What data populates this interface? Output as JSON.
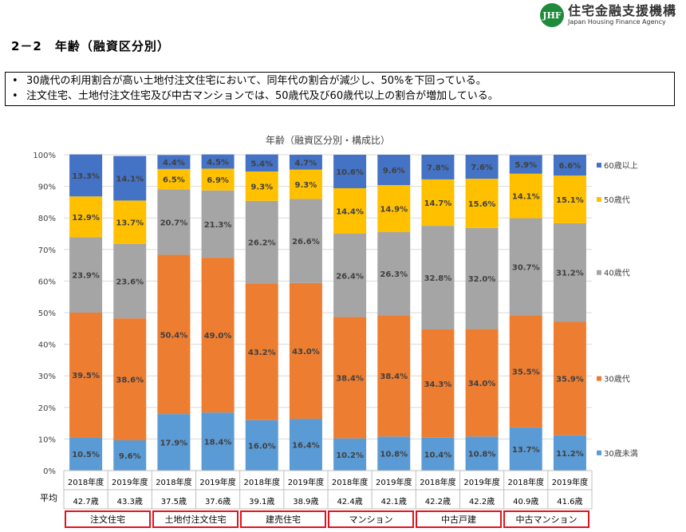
{
  "logo": {
    "mark": "JHF",
    "name": "住宅金融支援機構",
    "sub": "Japan Housing Finance Agency"
  },
  "section_title": "2－2　年齢（融資区分別）",
  "bullets": [
    "30歳代の利用割合が高い土地付注文住宅において、同年代の割合が減少し、50%を下回っている。",
    "注文住宅、土地付注文住宅及び中古マンションでは、50歳代及び60歳代以上の割合が増加している。"
  ],
  "bullet_mark": "•",
  "avg_label": "平均",
  "categories": [
    "注文住宅",
    "土地付注文住宅",
    "建売住宅",
    "マンション",
    "中古戸建",
    "中古マンション"
  ],
  "colors": {
    "u30": "#5b9bd5",
    "s30": "#ed7d31",
    "s40": "#a5a5a5",
    "s50": "#ffc000",
    "o60": "#4472c4"
  },
  "chart_data": {
    "type": "bar",
    "stacked": true,
    "title": "年齢（融資区分別・構成比）",
    "x": [
      "2018年度",
      "2019年度",
      "2018年度",
      "2019年度",
      "2018年度",
      "2019年度",
      "2018年度",
      "2019年度",
      "2018年度",
      "2019年度",
      "2018年度",
      "2019年度"
    ],
    "averages": [
      "42.7歳",
      "43.3歳",
      "37.5歳",
      "37.6歳",
      "39.1歳",
      "38.9歳",
      "42.4歳",
      "42.1歳",
      "42.2歳",
      "42.2歳",
      "40.9歳",
      "41.6歳"
    ],
    "ylim": [
      0,
      100
    ],
    "yticks": [
      "0%",
      "10%",
      "20%",
      "30%",
      "40%",
      "50%",
      "60%",
      "70%",
      "80%",
      "90%",
      "100%"
    ],
    "legend_position": "right",
    "series": [
      {
        "name": "30歳未満",
        "key": "u30",
        "values": [
          10.5,
          9.6,
          17.9,
          18.4,
          16.0,
          16.4,
          10.2,
          10.8,
          10.4,
          10.8,
          13.7,
          11.2
        ],
        "labels": [
          "10.5%",
          "9.6%",
          "17.9%",
          "18.4%",
          "16.0%",
          "16.4%",
          "10.2%",
          "10.8%",
          "10.4%",
          "10.8%",
          "13.7%",
          "11.2%"
        ]
      },
      {
        "name": "30歳代",
        "key": "s30",
        "values": [
          39.5,
          38.6,
          50.4,
          49.0,
          43.2,
          43.0,
          38.4,
          38.4,
          34.3,
          34.0,
          35.5,
          35.9
        ],
        "labels": [
          "39.5%",
          "38.6%",
          "50.4%",
          "49.0%",
          "43.2%",
          "43.0%",
          "38.4%",
          "38.4%",
          "34.3%",
          "34.0%",
          "35.5%",
          "35.9%"
        ]
      },
      {
        "name": "40歳代",
        "key": "s40",
        "values": [
          23.9,
          23.6,
          20.7,
          21.3,
          26.2,
          26.6,
          26.4,
          26.3,
          32.8,
          32.0,
          30.7,
          31.2
        ],
        "labels": [
          "23.9%",
          "23.6%",
          "20.7%",
          "21.3%",
          "26.2%",
          "26.6%",
          "26.4%",
          "26.3%",
          "32.8%",
          "32.0%",
          "30.7%",
          "31.2%"
        ]
      },
      {
        "name": "50歳代",
        "key": "s50",
        "values": [
          12.9,
          13.7,
          6.5,
          6.9,
          9.3,
          9.3,
          14.4,
          14.9,
          14.7,
          15.6,
          14.1,
          15.1
        ],
        "labels": [
          "12.9%",
          "13.7%",
          "6.5%",
          "6.9%",
          "9.3%",
          "9.3%",
          "14.4%",
          "14.9%",
          "14.7%",
          "15.6%",
          "14.1%",
          "15.1%"
        ]
      },
      {
        "name": "60歳以上",
        "key": "o60",
        "values": [
          13.3,
          14.1,
          4.4,
          4.5,
          5.4,
          4.7,
          10.6,
          9.6,
          7.8,
          7.6,
          5.9,
          6.6
        ],
        "labels": [
          "13.3%",
          "14.1%",
          "4.4%",
          "4.5%",
          "5.4%",
          "4.7%",
          "10.6%",
          "9.6%",
          "7.8%",
          "7.6%",
          "5.9%",
          "6.6%"
        ]
      }
    ]
  }
}
